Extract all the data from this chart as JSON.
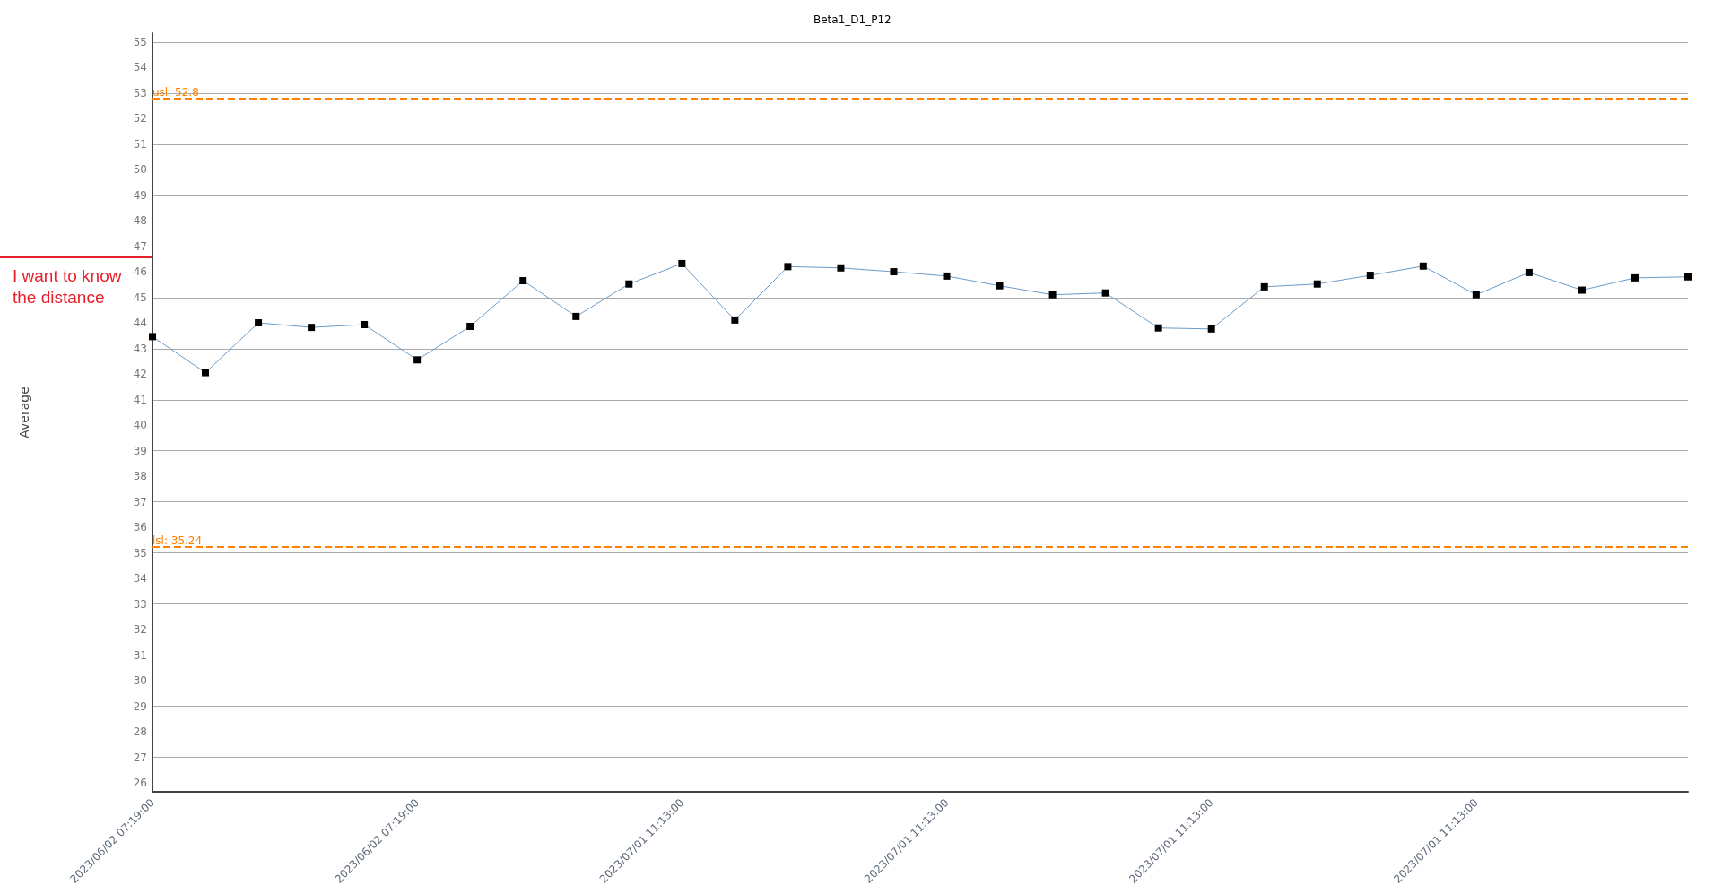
{
  "chart_data": {
    "type": "line",
    "title": "Beta1_D1_P12",
    "ylabel": "Average",
    "annotations": [
      "I want to know the distance"
    ],
    "categories": [
      "2023/06/02 07:19:00",
      null,
      null,
      null,
      null,
      "2023/06/02 07:19:00",
      null,
      null,
      null,
      null,
      "2023/07/01 11:13:00",
      null,
      null,
      null,
      null,
      "2023/07/01 11:13:00",
      null,
      null,
      null,
      null,
      "2023/07/01 11:13:00",
      null,
      null,
      null,
      null,
      "2023/07/01 11:13:00",
      null,
      null,
      null,
      null
    ],
    "series": [
      {
        "color": "#6b9bc8",
        "colors": [
          "#000000",
          "#000000",
          "#000000",
          "#000000",
          "#000000",
          "#000000",
          "#000000",
          "#000000",
          "#000000",
          "#000000",
          "#000000",
          "#000000",
          "#000000",
          "#000000",
          "#000000",
          "#000000",
          "#000000",
          "#000000",
          "#000000",
          "#000000",
          "#000000",
          "#000000",
          "#000000",
          "#000000",
          "#000000",
          "#000000",
          "#000000",
          "#000000",
          "#000000",
          "#000000"
        ],
        "values": [
          43.47,
          42.06,
          44.01,
          43.83,
          43.94,
          42.56,
          43.87,
          45.66,
          44.26,
          45.53,
          46.33,
          44.12,
          46.21,
          46.16,
          46.01,
          45.84,
          45.46,
          45.11,
          45.18,
          43.81,
          43.77,
          45.42,
          45.53,
          45.87,
          46.23,
          45.11,
          45.98,
          45.29,
          45.77,
          45.81
        ]
      }
    ],
    "ylim": [
      25.65,
      55.35
    ],
    "yticks": [
      26,
      27,
      28,
      29,
      30,
      31,
      32,
      33,
      34,
      35,
      36,
      37,
      38,
      39,
      40,
      41,
      42,
      43,
      44,
      45,
      46,
      47,
      48,
      49,
      50,
      51,
      52,
      53,
      54,
      55
    ],
    "ref_lines": [
      {
        "axis": "y",
        "value": 52.8,
        "label": "usl: 52.8",
        "color": "#ff8000",
        "line_style": "dashed"
      },
      {
        "axis": "y",
        "value": 35.24,
        "label": "lsl: 35.24",
        "color": "#ff8000",
        "line_style": "dashed"
      }
    ],
    "grid": "y",
    "marker": "square",
    "line_style": "solid"
  }
}
